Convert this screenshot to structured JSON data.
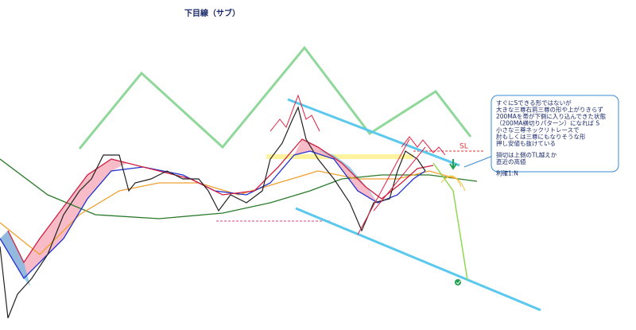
{
  "header": {
    "title": "下目線（サブ）"
  },
  "chart": {
    "sl_label": "SL"
  },
  "note": {
    "lines": [
      "すぐにSできる形ではないが",
      "大きな三尊右肩三尊の形や上がりきらず",
      "200MAを帯が下側に入り込んできた状態",
      "（200MA横切りパターン）になれば S",
      "小さな三尊ネックリトレースで",
      "肘もしくは三尊にもなりそうな形",
      "押し安値も抜けている",
      "損切は上側のTL越えか",
      "直近の高値",
      "利確1:N"
    ]
  }
}
